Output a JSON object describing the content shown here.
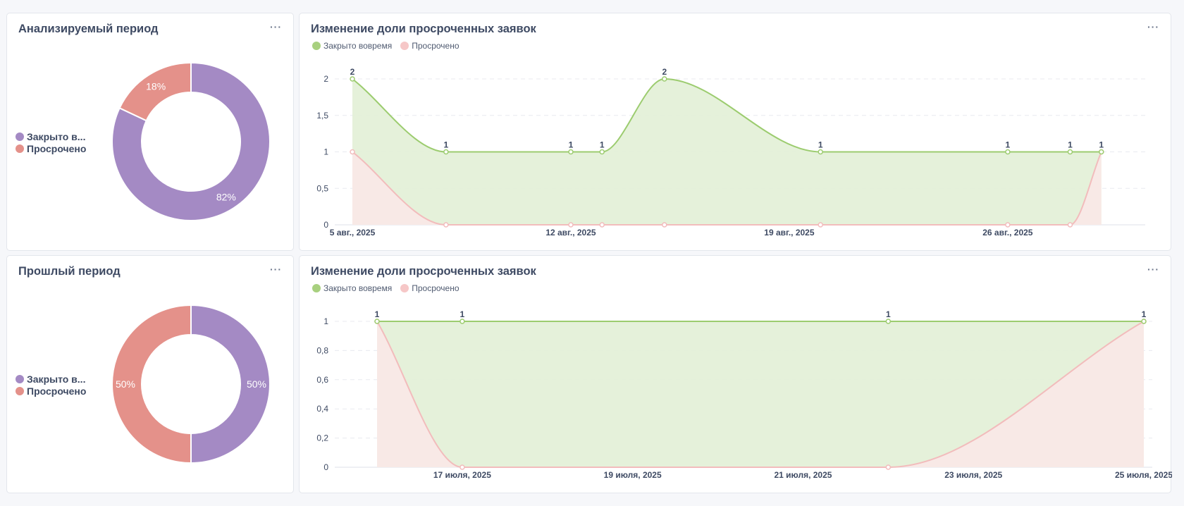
{
  "colors": {
    "closed": "#a48ac4",
    "overdue": "#e4918a",
    "line_green": "#9ccc6f",
    "fill_green": "#e4f0d8",
    "line_pink": "#f2bcbc",
    "fill_pink": "#fbe7e7",
    "legend_green": "#a8d07f",
    "legend_pink": "#f6c7c7"
  },
  "cards": [
    {
      "title": "Анализируемый период",
      "legend": [
        "Закрыто в...",
        "Просрочено"
      ],
      "chart_data": {
        "type": "pie",
        "labels": [
          "Закрыто вовремя",
          "Просрочено"
        ],
        "values": [
          82,
          18
        ],
        "data_labels": [
          "82%",
          "18%"
        ]
      }
    },
    {
      "title": "Изменение доли просроченных заявок",
      "legend": [
        "Закрыто вовремя",
        "Просрочено"
      ],
      "chart_data": {
        "type": "area",
        "x": [
          5,
          8,
          12,
          13,
          15,
          20,
          26,
          28,
          29
        ],
        "series": [
          {
            "name": "Закрыто вовремя",
            "values": [
              2,
              1,
              1,
              1,
              2,
              1,
              1,
              1,
              1
            ]
          },
          {
            "name": "Просрочено",
            "values": [
              1,
              0,
              0,
              0,
              0,
              0,
              0,
              0,
              1
            ]
          }
        ],
        "data_labels": [
          "2",
          "1",
          "1",
          "1",
          "2",
          "1",
          "1",
          "1",
          "1"
        ],
        "ylim": [
          0,
          2
        ],
        "yticks": [
          "0",
          "0,5",
          "1",
          "1,5",
          "2"
        ],
        "ytick_values": [
          0,
          0.5,
          1,
          1.5,
          2
        ],
        "xticks": [
          "5 авг., 2025",
          "12 авг., 2025",
          "19 авг., 2025",
          "26 авг., 2025"
        ],
        "xtick_values": [
          5,
          12,
          19,
          26
        ],
        "grid": true
      }
    },
    {
      "title": "Прошлый период",
      "legend": [
        "Закрыто в...",
        "Просрочено"
      ],
      "chart_data": {
        "type": "pie",
        "labels": [
          "Закрыто вовремя",
          "Просрочено"
        ],
        "values": [
          50,
          50
        ],
        "data_labels": [
          "50%",
          "50%"
        ]
      }
    },
    {
      "title": "Изменение доли просроченных заявок",
      "legend": [
        "Закрыто вовремя",
        "Просрочено"
      ],
      "chart_data": {
        "type": "area",
        "x": [
          16,
          17,
          22,
          25
        ],
        "series": [
          {
            "name": "Закрыто вовремя",
            "values": [
              1,
              1,
              1,
              1
            ]
          },
          {
            "name": "Просрочено",
            "values": [
              1,
              0,
              0,
              1
            ]
          }
        ],
        "data_labels": [
          "1",
          "1",
          "1",
          "1"
        ],
        "ylim": [
          0,
          1
        ],
        "yticks": [
          "0",
          "0,2",
          "0,4",
          "0,6",
          "0,8",
          "1"
        ],
        "ytick_values": [
          0,
          0.2,
          0.4,
          0.6,
          0.8,
          1
        ],
        "xticks": [
          "17 июля, 2025",
          "19 июля, 2025",
          "21 июля, 2025",
          "23 июля, 2025",
          "25 июля, 2025"
        ],
        "xtick_values": [
          17,
          19,
          21,
          23,
          25
        ],
        "grid": true
      }
    }
  ]
}
